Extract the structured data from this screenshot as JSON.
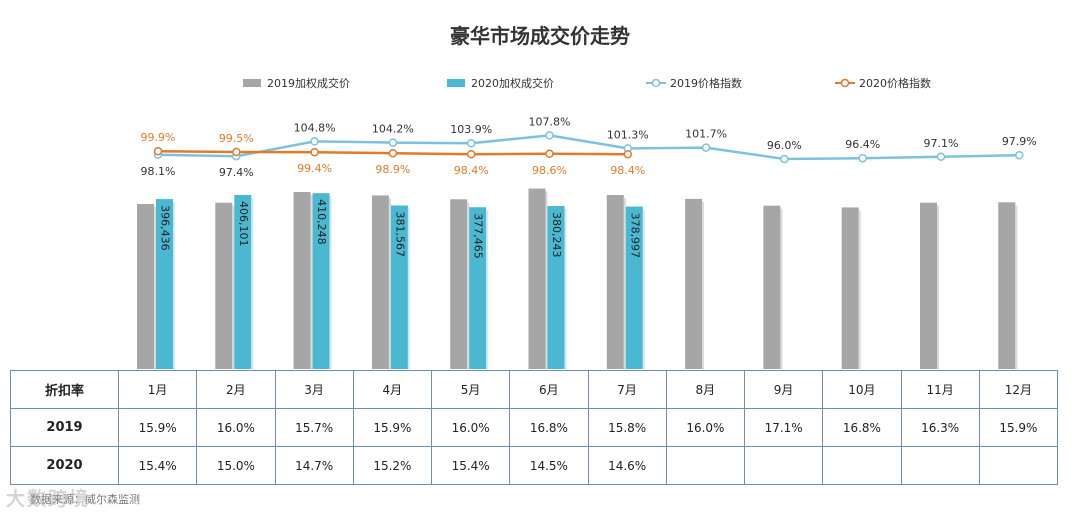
{
  "page": {
    "title": "豪华市场成交价走势",
    "source": "数据来源：威尔森监测",
    "watermark": "大数跨境"
  },
  "legend": {
    "items": [
      {
        "key": "bar2019",
        "label": "2019加权成交价"
      },
      {
        "key": "bar2020",
        "label": "2020加权成交价"
      },
      {
        "key": "line2019",
        "label": "2019价格指数"
      },
      {
        "key": "line2020",
        "label": "2020价格指数"
      }
    ]
  },
  "colors": {
    "bar2019": "#a6a6a6",
    "bar2020": "#4bb8d2",
    "line2019": "#7cc2df",
    "line2020": "#e07b2a",
    "grid_border": "#6e8fb5"
  },
  "chart_data": {
    "type": "bar",
    "categories": [
      "1月",
      "2月",
      "3月",
      "4月",
      "5月",
      "6月",
      "7月",
      "8月",
      "9月",
      "10月",
      "11月",
      "12月"
    ],
    "series": [
      {
        "name": "2019加权成交价",
        "kind": "bar",
        "values": [
          385000,
          388000,
          413000,
          405000,
          396000,
          421000,
          406000,
          397000,
          381000,
          377000,
          388000,
          389000
        ]
      },
      {
        "name": "2020加权成交价",
        "kind": "bar",
        "values": [
          396436,
          406101,
          410248,
          381567,
          377465,
          380243,
          378997,
          null,
          null,
          null,
          null,
          null
        ],
        "value_labels": [
          "396,436",
          "406,101",
          "410,248",
          "381,567",
          "377,465",
          "380,243",
          "378,997"
        ]
      },
      {
        "name": "2019价格指数",
        "kind": "line",
        "values": [
          98.1,
          97.4,
          104.8,
          104.2,
          103.9,
          107.8,
          101.3,
          101.7,
          96.0,
          96.4,
          97.1,
          97.9
        ],
        "value_labels": [
          "98.1%",
          "97.4%",
          "104.8%",
          "104.2%",
          "103.9%",
          "107.8%",
          "101.3%",
          "101.7%",
          "96.0%",
          "96.4%",
          "97.1%",
          "97.9%"
        ]
      },
      {
        "name": "2020价格指数",
        "kind": "line",
        "values": [
          99.9,
          99.5,
          99.4,
          98.9,
          98.4,
          98.6,
          98.4,
          null,
          null,
          null,
          null,
          null
        ],
        "value_labels": [
          "99.9%",
          "99.5%",
          "99.4%",
          "98.9%",
          "98.4%",
          "98.6%",
          "98.4%"
        ]
      }
    ],
    "legend_position": "top",
    "grid": false
  },
  "table": {
    "header_label": "折扣率",
    "rows": [
      {
        "label": "2019",
        "values": [
          "15.9%",
          "16.0%",
          "15.7%",
          "15.9%",
          "16.0%",
          "16.8%",
          "15.8%",
          "16.0%",
          "17.1%",
          "16.8%",
          "16.3%",
          "15.9%"
        ]
      },
      {
        "label": "2020",
        "values": [
          "15.4%",
          "15.0%",
          "14.7%",
          "15.2%",
          "15.4%",
          "14.5%",
          "14.6%",
          "",
          "",
          "",
          "",
          ""
        ]
      }
    ]
  }
}
